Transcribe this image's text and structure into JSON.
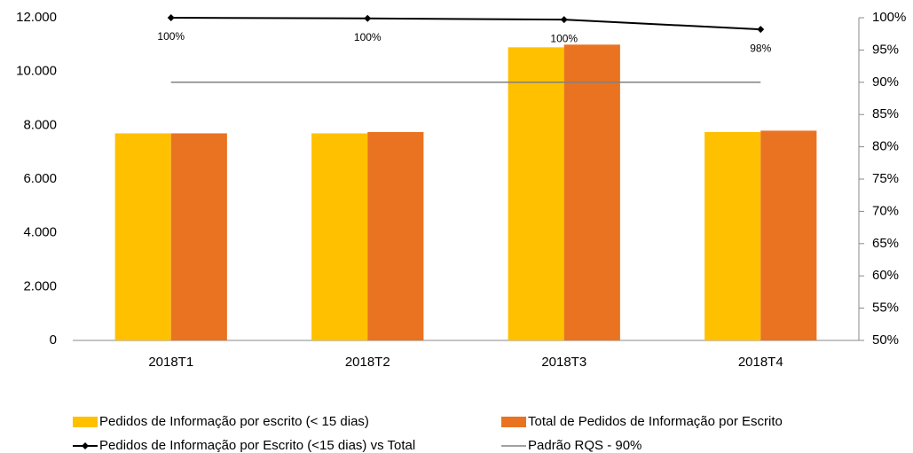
{
  "chart_data": {
    "type": "bar",
    "categories": [
      "2018T1",
      "2018T2",
      "2018T3",
      "2018T4"
    ],
    "series": [
      {
        "name": "Pedidos de Informação por escrito (< 15 dias)",
        "type": "bar",
        "color": "#FFC000",
        "values": [
          7700,
          7700,
          10900,
          7750
        ]
      },
      {
        "name": "Total de Pedidos de Informação por Escrito",
        "type": "bar",
        "color": "#E97320",
        "values": [
          7700,
          7750,
          11000,
          7800
        ]
      },
      {
        "name": "Pedidos de Informação por Escrito (<15 dias) vs Total",
        "type": "line",
        "axis": "y2",
        "color": "#000000",
        "marker": "diamond",
        "values": [
          100,
          99.9,
          99.7,
          98.2
        ],
        "value_labels": [
          "100%",
          "100%",
          "100%",
          "98%"
        ]
      },
      {
        "name": "Padrão RQS - 90%",
        "type": "line",
        "axis": "y2",
        "color": "#808080",
        "values": [
          90,
          90,
          90,
          90
        ]
      }
    ],
    "ylim": [
      0,
      12000
    ],
    "yticks": [
      0,
      {
        "value": 2000,
        "label": "2.000"
      },
      {
        "value": 4000,
        "label": "4.000"
      },
      {
        "value": 6000,
        "label": "6.000"
      },
      {
        "value": 8000,
        "label": "8.000"
      },
      {
        "value": 10000,
        "label": "10.000"
      },
      {
        "value": 12000,
        "label": "12.000"
      }
    ],
    "y2lim": [
      50,
      100
    ],
    "y2ticks": [
      {
        "value": 50,
        "label": "50%"
      },
      {
        "value": 55,
        "label": "55%"
      },
      {
        "value": 60,
        "label": "60%"
      },
      {
        "value": 65,
        "label": "65%"
      },
      {
        "value": 70,
        "label": "70%"
      },
      {
        "value": 75,
        "label": "75%"
      },
      {
        "value": 80,
        "label": "80%"
      },
      {
        "value": 85,
        "label": "85%"
      },
      {
        "value": 90,
        "label": "90%"
      },
      {
        "value": 95,
        "label": "95%"
      },
      {
        "value": 100,
        "label": "100%"
      }
    ],
    "grid": false,
    "legend": "bottom"
  }
}
